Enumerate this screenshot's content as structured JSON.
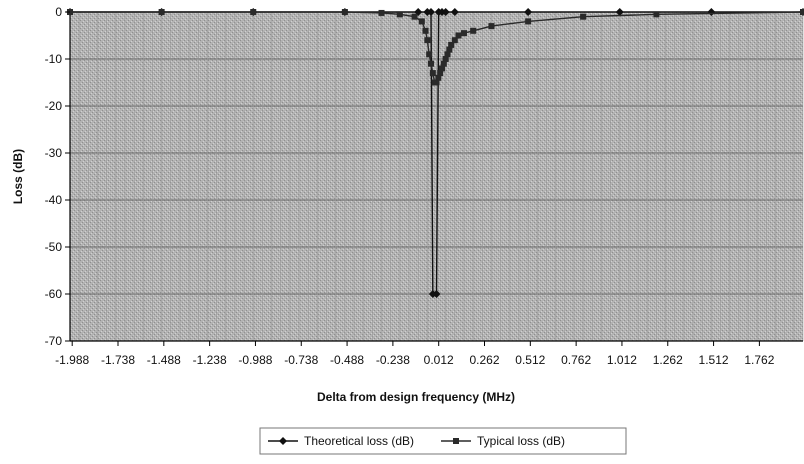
{
  "chart_data": {
    "type": "line",
    "title": "",
    "xlabel": "Delta from design frequency (MHz)",
    "ylabel": "Loss (dB)",
    "xlim": [
      -2.0,
      2.0
    ],
    "ylim": [
      -70,
      0
    ],
    "x_ticks": [
      "-1.988",
      "-1.738",
      "-1.488",
      "-1.238",
      "-0.988",
      "-0.738",
      "-0.488",
      "-0.238",
      "0.012",
      "0.262",
      "0.512",
      "0.762",
      "1.012",
      "1.262",
      "1.512",
      "1.762"
    ],
    "y_ticks": [
      "0",
      "-10",
      "-20",
      "-30",
      "-40",
      "-50",
      "-60",
      "-70"
    ],
    "grid": true,
    "legend_position": "bottom",
    "series": [
      {
        "name": "Theoretical loss (dB)",
        "color": "#111111",
        "marker": "diamond",
        "points": [
          [
            -2.0,
            0
          ],
          [
            -1.5,
            0
          ],
          [
            -1.0,
            0
          ],
          [
            -0.5,
            0
          ],
          [
            -0.1,
            0
          ],
          [
            -0.05,
            0
          ],
          [
            -0.03,
            0
          ],
          [
            -0.02,
            -60
          ],
          [
            0.0,
            -60
          ],
          [
            0.012,
            0
          ],
          [
            0.03,
            0
          ],
          [
            0.05,
            0
          ],
          [
            0.1,
            0
          ],
          [
            0.5,
            0
          ],
          [
            1.0,
            0
          ],
          [
            1.5,
            0
          ],
          [
            2.0,
            0
          ]
        ]
      },
      {
        "name": "Typical loss (dB)",
        "color": "#2a2a2a",
        "marker": "square",
        "points": [
          [
            -2.0,
            0
          ],
          [
            -1.5,
            0
          ],
          [
            -1.0,
            0
          ],
          [
            -0.5,
            0
          ],
          [
            -0.3,
            -0.2
          ],
          [
            -0.2,
            -0.5
          ],
          [
            -0.12,
            -1
          ],
          [
            -0.08,
            -2
          ],
          [
            -0.06,
            -4
          ],
          [
            -0.05,
            -6
          ],
          [
            -0.04,
            -9
          ],
          [
            -0.03,
            -11
          ],
          [
            -0.02,
            -13
          ],
          [
            -0.01,
            -15
          ],
          [
            0.0,
            -15
          ],
          [
            0.01,
            -14
          ],
          [
            0.02,
            -13
          ],
          [
            0.03,
            -12
          ],
          [
            0.04,
            -11
          ],
          [
            0.05,
            -10
          ],
          [
            0.06,
            -9
          ],
          [
            0.07,
            -8
          ],
          [
            0.08,
            -7
          ],
          [
            0.1,
            -6
          ],
          [
            0.12,
            -5
          ],
          [
            0.15,
            -4.5
          ],
          [
            0.2,
            -4
          ],
          [
            0.3,
            -3
          ],
          [
            0.5,
            -2
          ],
          [
            0.8,
            -1
          ],
          [
            1.2,
            -0.5
          ],
          [
            2.0,
            0
          ]
        ]
      }
    ]
  }
}
